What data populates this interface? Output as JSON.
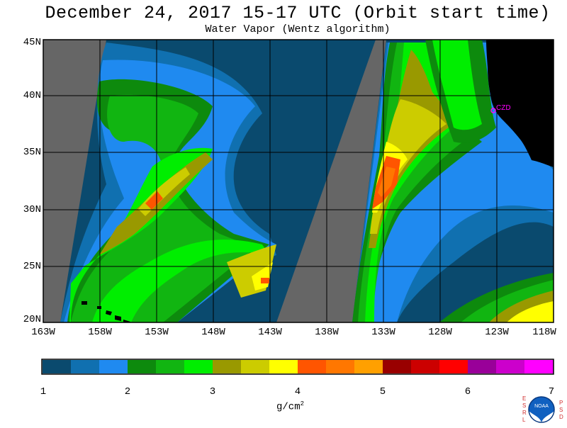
{
  "header": {
    "title": "December 24, 2017  15-17 UTC  (Orbit start time)",
    "subtitle": "Water Vapor (Wentz algorithm)"
  },
  "axes": {
    "latitude_labels": [
      "45N",
      "40N",
      "35N",
      "30N",
      "25N",
      "20N"
    ],
    "longitude_labels": [
      "163W",
      "158W",
      "153W",
      "148W",
      "143W",
      "138W",
      "133W",
      "128W",
      "123W",
      "118W"
    ]
  },
  "station": {
    "label": "CZD"
  },
  "colorbar": {
    "ticks": [
      "1",
      "2",
      "3",
      "4",
      "5",
      "6",
      "7"
    ],
    "unit": "g/cm",
    "unit_exponent": "2",
    "colors": [
      "#0a4a6e",
      "#1070b0",
      "#1f8af0",
      "#0d8a0d",
      "#11b511",
      "#00ee00",
      "#999900",
      "#cccc00",
      "#ffff00",
      "#ff5500",
      "#ff7700",
      "#ffa000",
      "#990000",
      "#cc0000",
      "#ff0000",
      "#990099",
      "#cc00cc",
      "#ff00ff"
    ]
  },
  "logo": {
    "left_letters": [
      "E",
      "S",
      "R",
      "L"
    ],
    "right_letters": [
      "P",
      "S",
      "D"
    ],
    "emblem_text": "NOAA"
  },
  "colors": {
    "no_data": "#666666",
    "land": "#000000",
    "grid": "#000000",
    "station": "#ff00ff"
  }
}
